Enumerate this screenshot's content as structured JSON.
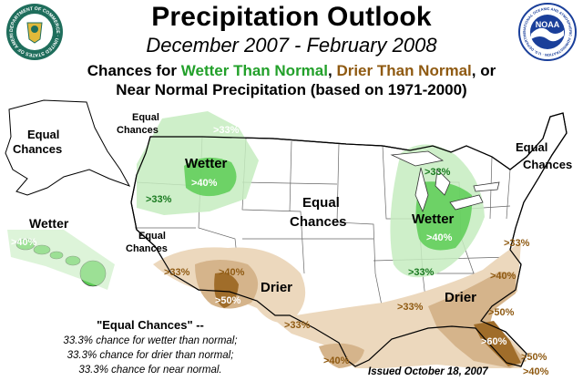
{
  "header": {
    "title": "Precipitation Outlook",
    "subtitle": "December 2007 - February 2008",
    "legend_prefix": "Chances for ",
    "legend_wetter": "Wetter Than Normal",
    "legend_sep": ", ",
    "legend_drier": "Drier Than Normal",
    "legend_suffix": ", or",
    "legend_line2": "Near Normal Precipitation (based on 1971-2000)"
  },
  "logos": {
    "left_seal_text": "DEPARTMENT OF COMMERCE · UNITED STATES OF AMERICA",
    "right_seal_text": "NATIONAL OCEANIC AND ATMOSPHERIC ADMINISTRATION · U.S. DEPARTMENT OF COMMERCE",
    "right_seal_letters": "NOAA"
  },
  "colors": {
    "wet_light": "#c6ecc0",
    "wet_dark": "#5ccc55",
    "dry_light": "#ecd8bd",
    "dry_mid": "#d5b48b",
    "dry_dark": "#a06d2a",
    "wet_text": "#22a02a",
    "dry_text": "#8f5a12"
  },
  "map_labels": {
    "ec_alaska": [
      "Equal",
      "Chances"
    ],
    "ec_nw": [
      "Equal",
      "Chances"
    ],
    "ec_sw": [
      "Equal",
      "Chances"
    ],
    "ec_center": [
      "Equal",
      "Chances"
    ],
    "ec_ne": [
      "Equal",
      "Chances"
    ],
    "wetter_hawaii": "Wetter",
    "wetter_nw": "Wetter",
    "wetter_ohio": "Wetter",
    "drier_sw": "Drier",
    "drier_se": "Drier",
    "hawaii_pct": ">40%",
    "nw_33_top": ">33%",
    "nw_40": ">40%",
    "nw_33_left": ">33%",
    "ohio_33_top": ">33%",
    "ohio_40": ">40%",
    "ohio_33_bottom": ">33%",
    "sw_33_left": ">33%",
    "sw_40": ">40%",
    "sw_50": ">50%",
    "tx_33": ">33%",
    "south_40": ">40%",
    "se_33_mid": ">33%",
    "se_33_ne": ">33%",
    "se_40": ">40%",
    "fl_50": ">50%",
    "fl_60": ">60%",
    "fl_50b": ">50%",
    "fl_40": ">40%"
  },
  "note": {
    "title": "\"Equal Chances\" --",
    "line1": "33.3% chance for wetter than normal;",
    "line2": "33.3% chance for drier than normal;",
    "line3": "33.3% chance for near normal."
  },
  "issued": "Issued October 18, 2007"
}
